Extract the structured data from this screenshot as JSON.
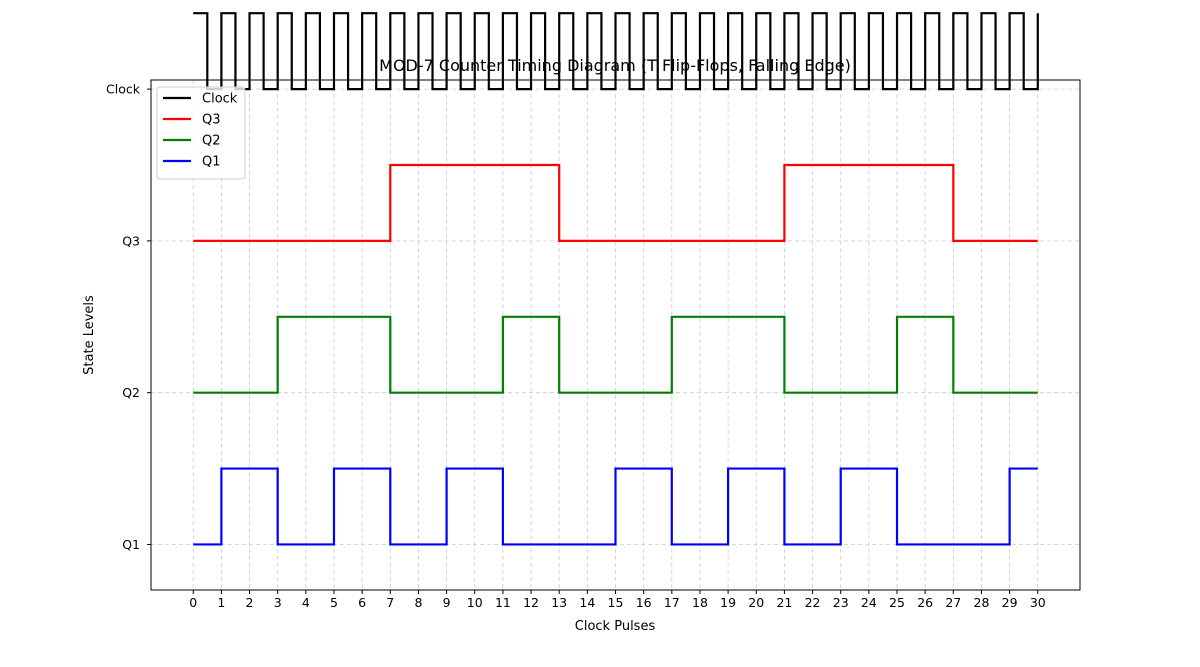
{
  "chart_data": {
    "type": "line",
    "title": "MOD-7 Counter Timing Diagram (T Flip-Flops, Falling Edge)",
    "xlabel": "Clock Pulses",
    "ylabel": "State Levels",
    "x_ticks": [
      0,
      1,
      2,
      3,
      4,
      5,
      6,
      7,
      8,
      9,
      10,
      11,
      12,
      13,
      14,
      15,
      16,
      17,
      18,
      19,
      20,
      21,
      22,
      23,
      24,
      25,
      26,
      27,
      28,
      29,
      30
    ],
    "xlim": [
      -1.5,
      31.5
    ],
    "ylim": [
      -0.15,
      1.53
    ],
    "y_ticks": [
      {
        "label": "Q1",
        "value": 0.0
      },
      {
        "label": "Q2",
        "value": 0.5
      },
      {
        "label": "Q3",
        "value": 1.0
      },
      {
        "label": "Clock",
        "value": 1.5
      }
    ],
    "grid": true,
    "legend_position": "upper-left",
    "step": "post",
    "amplitude": 0.25,
    "series": [
      {
        "name": "Clock",
        "color": "#000000",
        "baseline": 1.5,
        "levels": [
          1,
          0,
          1,
          0,
          1,
          0,
          1,
          0,
          1,
          0,
          1,
          0,
          1,
          0,
          1,
          0,
          1,
          0,
          1,
          0,
          1,
          0,
          1,
          0,
          1,
          0,
          1,
          0,
          1,
          0,
          1,
          0,
          1,
          0,
          1,
          0,
          1,
          0,
          1,
          0,
          1,
          0,
          1,
          0,
          1,
          0,
          1,
          0,
          1,
          0,
          1,
          0,
          1,
          0,
          1,
          0,
          1,
          0,
          1,
          0,
          1
        ]
      },
      {
        "name": "Q3",
        "color": "#ff0000",
        "baseline": 1.0,
        "levels": [
          0,
          0,
          0,
          0,
          0,
          0,
          0,
          1,
          1,
          1,
          1,
          1,
          1,
          0,
          0,
          0,
          0,
          0,
          0,
          0,
          0,
          1,
          1,
          1,
          1,
          1,
          1,
          0,
          0,
          0,
          0
        ]
      },
      {
        "name": "Q2",
        "color": "#008000",
        "baseline": 0.5,
        "levels": [
          0,
          0,
          0,
          1,
          1,
          1,
          1,
          0,
          0,
          0,
          0,
          1,
          1,
          0,
          0,
          0,
          0,
          1,
          1,
          1,
          1,
          0,
          0,
          0,
          0,
          1,
          1,
          0,
          0,
          0,
          0
        ]
      },
      {
        "name": "Q1",
        "color": "#0000ff",
        "baseline": 0.0,
        "levels": [
          0,
          1,
          1,
          0,
          0,
          1,
          1,
          0,
          0,
          1,
          1,
          0,
          0,
          0,
          0,
          1,
          1,
          0,
          0,
          1,
          1,
          0,
          0,
          1,
          1,
          0,
          0,
          0,
          0,
          1,
          1
        ]
      }
    ]
  }
}
